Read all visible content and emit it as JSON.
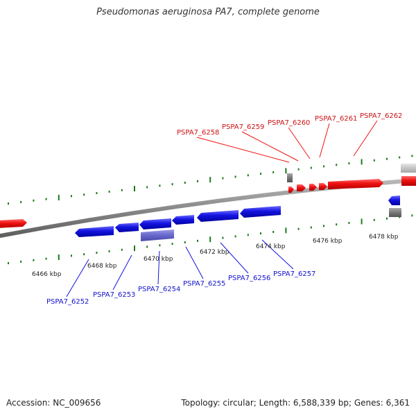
{
  "title": "Pseudomonas aeruginosa PA7, complete genome",
  "footer": {
    "accession": "Accession: NC_009656",
    "stats": "Topology: circular; Length: 6,588,339 bp; Genes: 6,361"
  },
  "colors": {
    "forward": "#ee1111",
    "reverse": "#1111dd",
    "pseudo": "#6666cc",
    "gray": "#777777",
    "lightgray": "#bbbbbb",
    "tick": "#1a7a1a",
    "backbone": "#8a8a8a"
  },
  "ticks": [
    {
      "label": "6466 kbp"
    },
    {
      "label": "6468 kbp"
    },
    {
      "label": "6470 kbp"
    },
    {
      "label": "6472 kbp"
    },
    {
      "label": "6474 kbp"
    },
    {
      "label": "6476 kbp"
    },
    {
      "label": "6478 kbp"
    }
  ],
  "genes_top": [
    {
      "label": "PSPA7_6258"
    },
    {
      "label": "PSPA7_6259"
    },
    {
      "label": "PSPA7_6260"
    },
    {
      "label": "PSPA7_6261"
    },
    {
      "label": "PSPA7_6262"
    }
  ],
  "genes_bottom": [
    {
      "label": "PSPA7_6252"
    },
    {
      "label": "PSPA7_6253"
    },
    {
      "label": "PSPA7_6254"
    },
    {
      "label": "PSPA7_6255"
    },
    {
      "label": "PSPA7_6256"
    },
    {
      "label": "PSPA7_6257"
    }
  ]
}
